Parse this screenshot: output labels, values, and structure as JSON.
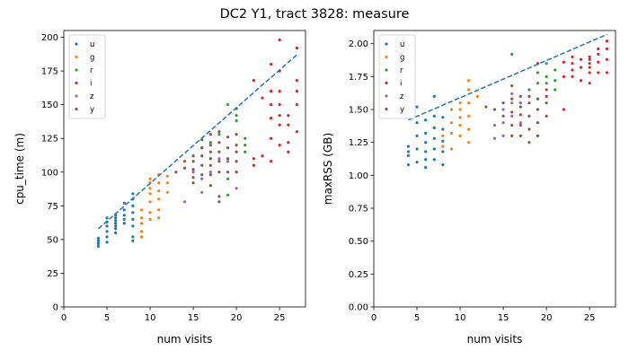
{
  "figure": {
    "suptitle": "DC2 Y1, tract 3828: measure"
  },
  "chart_data": [
    {
      "type": "scatter",
      "xlabel": "num visits",
      "ylabel": "cpu_time (m)",
      "xlim": [
        0,
        28
      ],
      "ylim": [
        0,
        205
      ],
      "xticks": [
        0,
        5,
        10,
        15,
        20,
        25
      ],
      "yticks": [
        0,
        25,
        50,
        75,
        100,
        125,
        150,
        175,
        200
      ],
      "grid": false,
      "legend_position": "top-left",
      "fit_line": {
        "style": "dashed",
        "color": "#1f77b4",
        "x": [
          4,
          27
        ],
        "y": [
          58,
          187
        ]
      },
      "series": [
        {
          "name": "u",
          "color": "#1f77b4",
          "points": [
            [
              4,
              45
            ],
            [
              4,
              47
            ],
            [
              4,
              49
            ],
            [
              4,
              51
            ],
            [
              5,
              48
            ],
            [
              5,
              52
            ],
            [
              5,
              56
            ],
            [
              5,
              60
            ],
            [
              5,
              63
            ],
            [
              5,
              66
            ],
            [
              6,
              55
            ],
            [
              6,
              58
            ],
            [
              6,
              60
            ],
            [
              6,
              62
            ],
            [
              6,
              64
            ],
            [
              6,
              66
            ],
            [
              6,
              68
            ],
            [
              7,
              62
            ],
            [
              7,
              65
            ],
            [
              7,
              68
            ],
            [
              7,
              72
            ],
            [
              7,
              77
            ],
            [
              8,
              49
            ],
            [
              8,
              52
            ],
            [
              8,
              60
            ],
            [
              8,
              65
            ],
            [
              8,
              70
            ],
            [
              8,
              75
            ],
            [
              8,
              80
            ],
            [
              8,
              84
            ]
          ]
        },
        {
          "name": "g",
          "color": "#ff7f0e",
          "points": [
            [
              9,
              52
            ],
            [
              9,
              56
            ],
            [
              9,
              62
            ],
            [
              9,
              66
            ],
            [
              9,
              72
            ],
            [
              10,
              65
            ],
            [
              10,
              70
            ],
            [
              10,
              78
            ],
            [
              10,
              84
            ],
            [
              10,
              88
            ],
            [
              10,
              92
            ],
            [
              10,
              95
            ],
            [
              11,
              66
            ],
            [
              11,
              72
            ],
            [
              11,
              80
            ],
            [
              11,
              86
            ],
            [
              11,
              92
            ],
            [
              11,
              98
            ],
            [
              12,
              85
            ],
            [
              12,
              92
            ],
            [
              12,
              97
            ]
          ]
        },
        {
          "name": "r",
          "color": "#2ca02c",
          "points": [
            [
              16,
              118
            ],
            [
              17,
              122
            ],
            [
              18,
              128
            ],
            [
              19,
              95
            ],
            [
              19,
              83
            ],
            [
              19,
              150
            ],
            [
              20,
              138
            ],
            [
              20,
              142
            ],
            [
              20,
              147
            ],
            [
              21,
              115
            ],
            [
              21,
              120
            ],
            [
              21,
              125
            ]
          ]
        },
        {
          "name": "i",
          "color": "#d62728",
          "points": [
            [
              22,
              110
            ],
            [
              22,
              105
            ],
            [
              22,
              168
            ],
            [
              23,
              112
            ],
            [
              23,
              155
            ],
            [
              24,
              108
            ],
            [
              24,
              125
            ],
            [
              24,
              140
            ],
            [
              24,
              150
            ],
            [
              24,
              160
            ],
            [
              24,
              180
            ],
            [
              25,
              120
            ],
            [
              25,
              135
            ],
            [
              25,
              142
            ],
            [
              25,
              150
            ],
            [
              25,
              160
            ],
            [
              25,
              175
            ],
            [
              25,
              198
            ],
            [
              26,
              115
            ],
            [
              26,
              122
            ],
            [
              26,
              135
            ],
            [
              26,
              142
            ],
            [
              27,
              130
            ],
            [
              27,
              150
            ],
            [
              27,
              160
            ],
            [
              27,
              168
            ],
            [
              27,
              192
            ]
          ]
        },
        {
          "name": "z",
          "color": "#9467bd",
          "points": [
            [
              14,
              78
            ],
            [
              15,
              100
            ],
            [
              16,
              85
            ],
            [
              16,
              95
            ],
            [
              17,
              100
            ],
            [
              18,
              110
            ],
            [
              19,
              108
            ],
            [
              20,
              88
            ]
          ]
        },
        {
          "name": "y",
          "color": "#8c564b",
          "points": [
            [
              13,
              100
            ],
            [
              14,
              103
            ],
            [
              14,
              108
            ],
            [
              15,
              92
            ],
            [
              15,
              96
            ],
            [
              15,
              102
            ],
            [
              15,
              108
            ],
            [
              15,
              112
            ],
            [
              16,
              98
            ],
            [
              16,
              105
            ],
            [
              16,
              112
            ],
            [
              16,
              118
            ],
            [
              16,
              124
            ],
            [
              17,
              90
            ],
            [
              17,
              98
            ],
            [
              17,
              105
            ],
            [
              17,
              110
            ],
            [
              17,
              115
            ],
            [
              17,
              120
            ],
            [
              17,
              128
            ],
            [
              18,
              78
            ],
            [
              18,
              82
            ],
            [
              18,
              100
            ],
            [
              18,
              108
            ],
            [
              18,
              115
            ],
            [
              18,
              122
            ],
            [
              18,
              130
            ],
            [
              19,
              100
            ],
            [
              19,
              110
            ],
            [
              19,
              118
            ],
            [
              19,
              126
            ],
            [
              20,
              100
            ],
            [
              20,
              108
            ],
            [
              20,
              115
            ],
            [
              20,
              120
            ],
            [
              20,
              128
            ]
          ]
        }
      ]
    },
    {
      "type": "scatter",
      "xlabel": "num visits",
      "ylabel": "maxRSS (GB)",
      "xlim": [
        0,
        28
      ],
      "ylim": [
        0,
        2.1
      ],
      "xticks": [
        0,
        5,
        10,
        15,
        20,
        25
      ],
      "yticks": [
        0.0,
        0.25,
        0.5,
        0.75,
        1.0,
        1.25,
        1.5,
        1.75,
        2.0
      ],
      "ytick_labels": [
        "0.00",
        "0.25",
        "0.50",
        "0.75",
        "1.00",
        "1.25",
        "1.50",
        "1.75",
        "2.00"
      ],
      "grid": false,
      "legend_position": "top-left",
      "fit_line": {
        "style": "dashed",
        "color": "#1f77b4",
        "x": [
          4,
          27
        ],
        "y": [
          1.42,
          2.07
        ]
      },
      "series": [
        {
          "name": "u",
          "color": "#1f77b4",
          "points": [
            [
              4,
              1.08
            ],
            [
              4,
              1.15
            ],
            [
              4,
              1.18
            ],
            [
              4,
              1.22
            ],
            [
              5,
              1.1
            ],
            [
              5,
              1.2
            ],
            [
              5,
              1.3
            ],
            [
              5,
              1.4
            ],
            [
              5,
              1.52
            ],
            [
              6,
              1.06
            ],
            [
              6,
              1.12
            ],
            [
              6,
              1.18
            ],
            [
              6,
              1.25
            ],
            [
              6,
              1.32
            ],
            [
              6,
              1.42
            ],
            [
              7,
              1.12
            ],
            [
              7,
              1.2
            ],
            [
              7,
              1.28
            ],
            [
              7,
              1.36
            ],
            [
              7,
              1.45
            ],
            [
              7,
              1.6
            ],
            [
              8,
              1.08
            ],
            [
              8,
              1.18
            ],
            [
              8,
              1.26
            ],
            [
              8,
              1.35
            ],
            [
              8,
              1.44
            ]
          ]
        },
        {
          "name": "g",
          "color": "#ff7f0e",
          "points": [
            [
              8,
              1.22
            ],
            [
              8,
              1.3
            ],
            [
              9,
              1.2
            ],
            [
              9,
              1.32
            ],
            [
              9,
              1.4
            ],
            [
              9,
              1.5
            ],
            [
              10,
              1.3
            ],
            [
              10,
              1.38
            ],
            [
              10,
              1.44
            ],
            [
              10,
              1.5
            ],
            [
              10,
              1.55
            ],
            [
              11,
              1.25
            ],
            [
              11,
              1.35
            ],
            [
              11,
              1.45
            ],
            [
              11,
              1.55
            ],
            [
              11,
              1.65
            ],
            [
              11,
              1.72
            ],
            [
              12,
              1.6
            ]
          ]
        },
        {
          "name": "r",
          "color": "#2ca02c",
          "points": [
            [
              16,
              1.92
            ],
            [
              17,
              1.55
            ],
            [
              18,
              1.65
            ],
            [
              19,
              1.7
            ],
            [
              19,
              1.78
            ],
            [
              20,
              1.7
            ],
            [
              20,
              1.75
            ],
            [
              20,
              1.85
            ],
            [
              21,
              1.65
            ],
            [
              21,
              1.72
            ],
            [
              21,
              1.8
            ]
          ]
        },
        {
          "name": "i",
          "color": "#d62728",
          "points": [
            [
              19,
              1.85
            ],
            [
              20,
              1.6
            ],
            [
              22,
              1.5
            ],
            [
              22,
              1.75
            ],
            [
              22,
              1.86
            ],
            [
              23,
              1.75
            ],
            [
              23,
              1.8
            ],
            [
              23,
              1.85
            ],
            [
              23,
              1.9
            ],
            [
              24,
              1.72
            ],
            [
              24,
              1.82
            ],
            [
              24,
              1.88
            ],
            [
              25,
              1.7
            ],
            [
              25,
              1.78
            ],
            [
              25,
              1.82
            ],
            [
              25,
              1.85
            ],
            [
              25,
              1.88
            ],
            [
              25,
              1.9
            ],
            [
              26,
              1.78
            ],
            [
              26,
              1.86
            ],
            [
              26,
              1.92
            ],
            [
              26,
              1.96
            ],
            [
              27,
              1.78
            ],
            [
              27,
              1.88
            ],
            [
              27,
              1.96
            ],
            [
              27,
              2.02
            ]
          ]
        },
        {
          "name": "z",
          "color": "#9467bd",
          "points": [
            [
              14,
              1.28
            ],
            [
              14,
              1.38
            ],
            [
              15,
              1.3
            ],
            [
              15,
              1.4
            ],
            [
              15,
              1.5
            ],
            [
              16,
              1.45
            ],
            [
              16,
              1.55
            ],
            [
              16,
              1.62
            ],
            [
              17,
              1.4
            ],
            [
              17,
              1.55
            ]
          ]
        },
        {
          "name": "y",
          "color": "#8c564b",
          "points": [
            [
              13,
              1.52
            ],
            [
              14,
              1.5
            ],
            [
              15,
              1.45
            ],
            [
              15,
              1.55
            ],
            [
              16,
              1.3
            ],
            [
              16,
              1.38
            ],
            [
              16,
              1.48
            ],
            [
              16,
              1.58
            ],
            [
              16,
              1.68
            ],
            [
              17,
              1.3
            ],
            [
              17,
              1.38
            ],
            [
              17,
              1.46
            ],
            [
              17,
              1.52
            ],
            [
              17,
              1.6
            ],
            [
              18,
              1.25
            ],
            [
              18,
              1.35
            ],
            [
              18,
              1.45
            ],
            [
              18,
              1.55
            ],
            [
              18,
              1.6
            ],
            [
              19,
              1.3
            ],
            [
              19,
              1.4
            ],
            [
              19,
              1.5
            ],
            [
              19,
              1.58
            ],
            [
              20,
              1.45
            ],
            [
              20,
              1.55
            ],
            [
              20,
              1.65
            ]
          ]
        }
      ]
    }
  ]
}
